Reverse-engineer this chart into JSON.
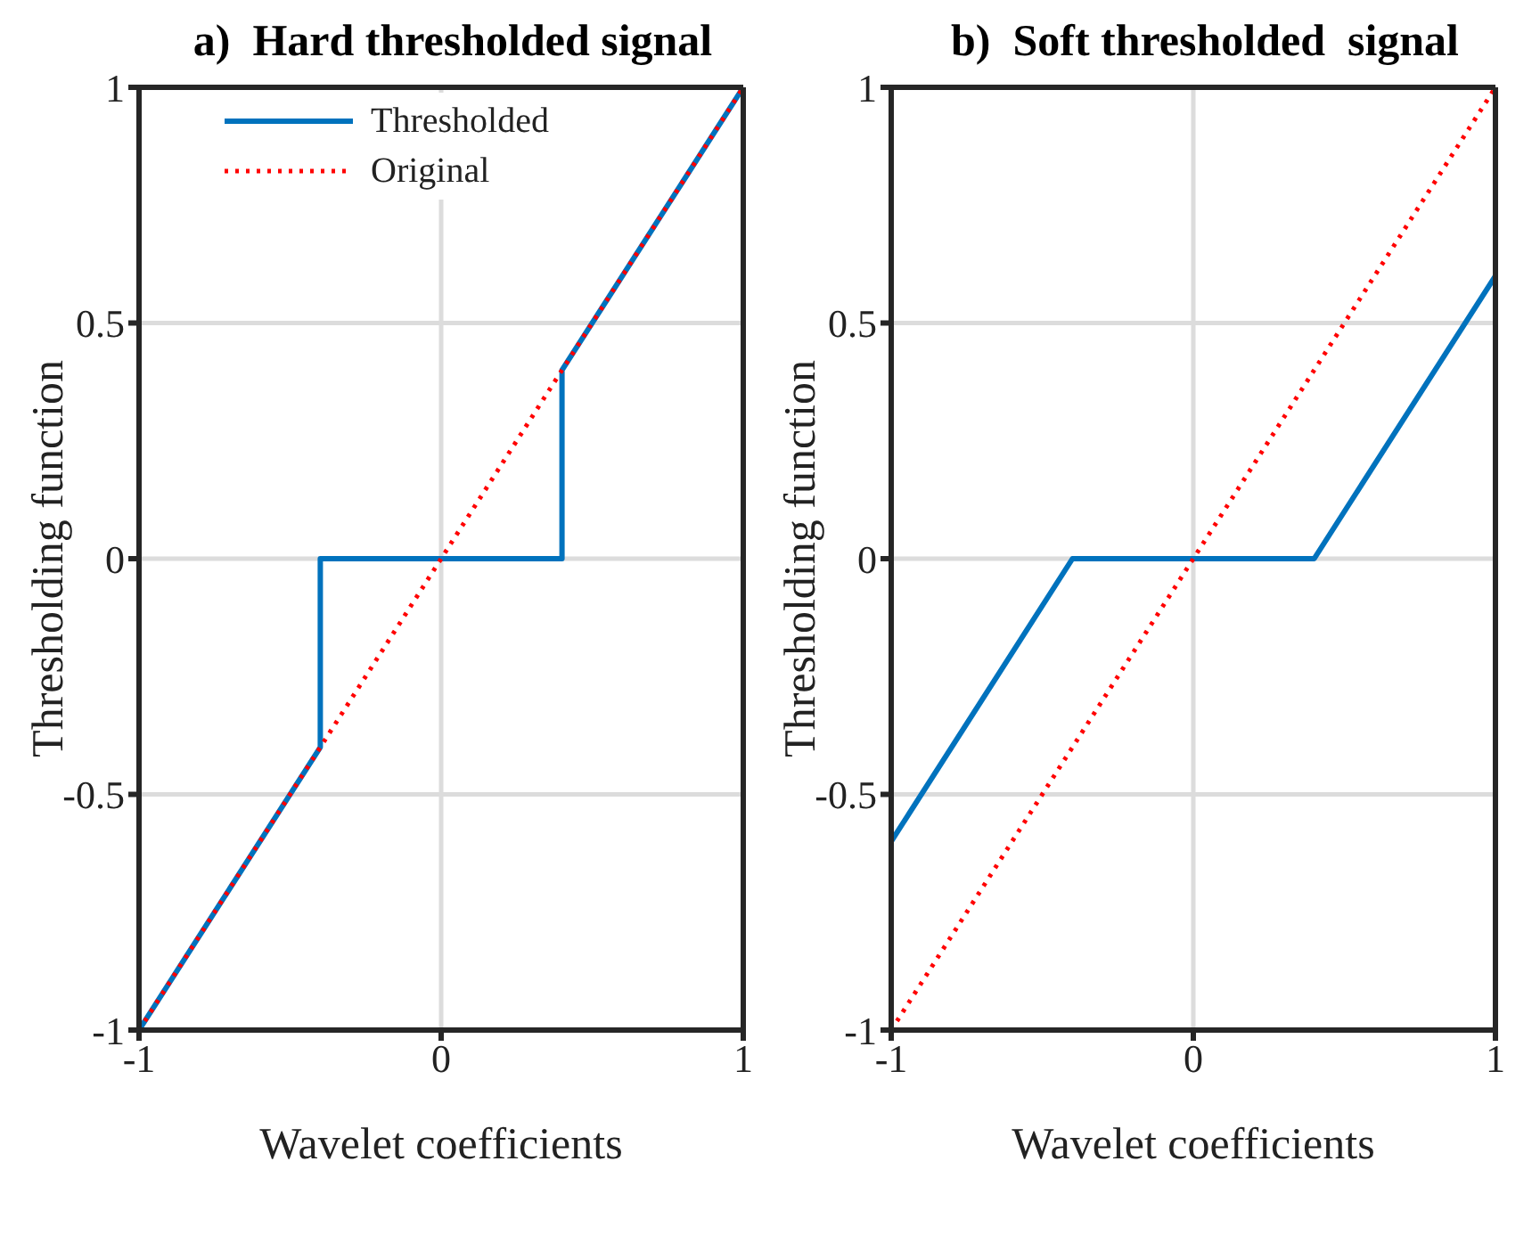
{
  "chart_data": [
    {
      "type": "line",
      "title": "a)  Hard thresholded signal",
      "xlabel": "Wavelet coefficients",
      "ylabel": "Thresholding function",
      "xlim": [
        -1,
        1
      ],
      "ylim": [
        -1,
        1
      ],
      "xticks": [
        -1,
        0,
        1
      ],
      "yticks": [
        -1,
        -0.5,
        0,
        0.5,
        1
      ],
      "grid": true,
      "legend": "top left",
      "series": [
        {
          "name": "Thresholded",
          "color": "#0072bd",
          "line_style": "solid",
          "x": [
            -1,
            -0.4,
            -0.4,
            0.4,
            0.4,
            1
          ],
          "values": [
            -1,
            -0.4,
            0,
            0,
            0.4,
            1
          ]
        },
        {
          "name": "Original",
          "color": "#ff0000",
          "line_style": "dotted",
          "x": [
            -1,
            1
          ],
          "values": [
            -1,
            1
          ]
        }
      ]
    },
    {
      "type": "line",
      "title": "b)  Soft thresholded  signal",
      "xlabel": "Wavelet coefficients",
      "ylabel": "Thresholding function",
      "xlim": [
        -1,
        1
      ],
      "ylim": [
        -1,
        1
      ],
      "xticks": [
        -1,
        0,
        1
      ],
      "yticks": [
        -1,
        -0.5,
        0,
        0.5,
        1
      ],
      "grid": true,
      "series": [
        {
          "color": "#0072bd",
          "line_style": "solid",
          "x": [
            -1,
            -0.4,
            0.4,
            1
          ],
          "values": [
            -0.6,
            0,
            0,
            0.6
          ]
        },
        {
          "color": "#ff0000",
          "line_style": "dotted",
          "x": [
            -1,
            1
          ],
          "values": [
            -1,
            1
          ]
        }
      ]
    }
  ]
}
